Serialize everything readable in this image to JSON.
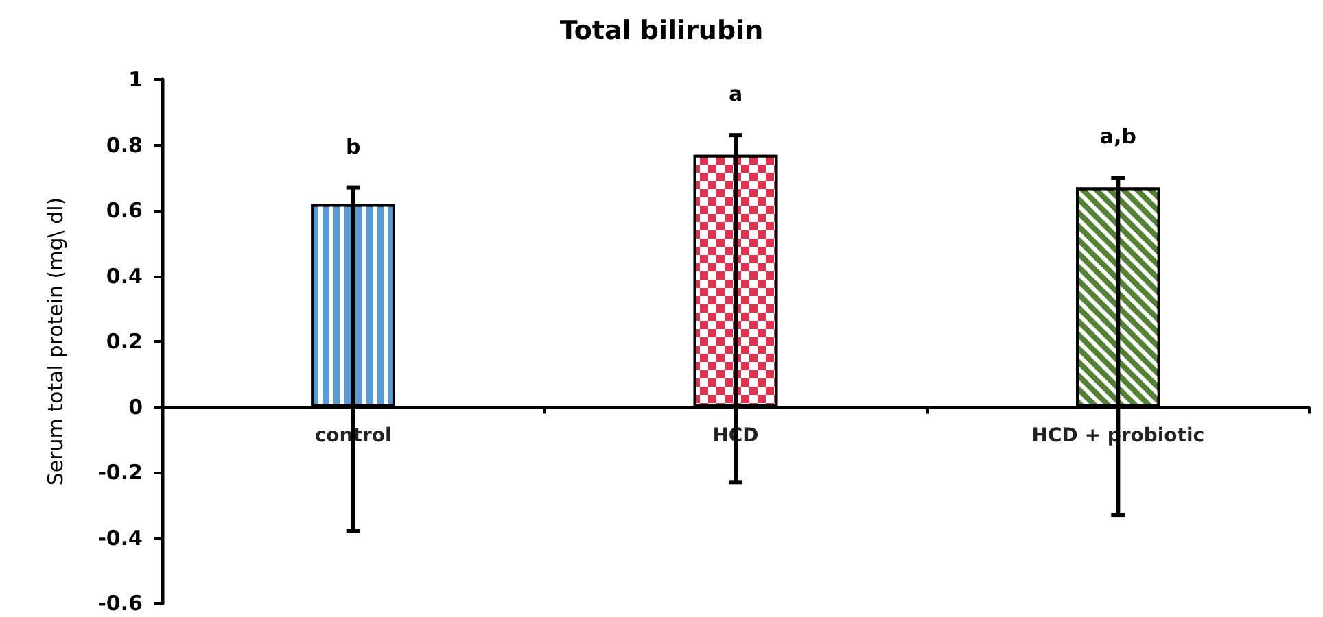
{
  "chart_data": {
    "type": "bar",
    "title": "Total bilirubin",
    "ylabel": "Serum total protein (mg\\ dl)",
    "categories": [
      "control",
      "HCD",
      "HCD + probiotic"
    ],
    "values": [
      0.62,
      0.77,
      0.67
    ],
    "colors": [
      "#5b9bd5",
      "#e0314f",
      "#548235"
    ],
    "errors": [
      [
        -0.38,
        0.67
      ],
      [
        -0.23,
        0.83
      ],
      [
        -0.33,
        0.7
      ]
    ],
    "ylim": [
      -0.6,
      1
    ],
    "yticks": [
      -0.6,
      -0.4,
      -0.2,
      0,
      0.2,
      0.4,
      0.6,
      0.8,
      1
    ],
    "annotations": [
      "b",
      "a",
      "a,b"
    ],
    "legend": false
  }
}
